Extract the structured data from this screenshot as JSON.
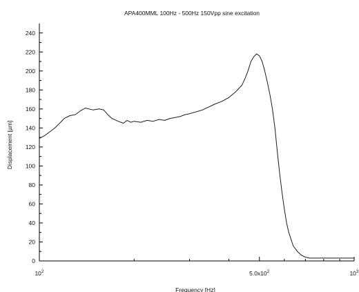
{
  "chart_data": {
    "type": "line",
    "title": "APA400MML 100Hz - 500Hz 150Vpp sine excitation",
    "xlabel": "Frequency [Hz]",
    "ylabel": "Displacement [µm]",
    "x_scale": "log",
    "xlim": [
      100,
      1000
    ],
    "ylim": [
      0,
      250
    ],
    "x_ticks": [
      {
        "value": 100,
        "base": "10",
        "sup": "2"
      },
      {
        "value": 500,
        "base": "5.0x10",
        "sup": "2"
      },
      {
        "value": 1000,
        "base": "10",
        "sup": "3"
      }
    ],
    "y_ticks": [
      0,
      10,
      20,
      30,
      40,
      50,
      60,
      70,
      80,
      90,
      100,
      110,
      120,
      130,
      140,
      150,
      160,
      170,
      180,
      190,
      200,
      210,
      220,
      230,
      240
    ],
    "grid": false,
    "series": [
      {
        "color": "#1a1a1a",
        "x": [
          100,
          104,
          108,
          112,
          116,
          120,
          125,
          130,
          135,
          140,
          148,
          155,
          160,
          165,
          170,
          178,
          185,
          190,
          195,
          200,
          210,
          220,
          230,
          240,
          250,
          260,
          270,
          280,
          290,
          300,
          315,
          330,
          345,
          360,
          380,
          400,
          420,
          440,
          450,
          460,
          470,
          480,
          490,
          500,
          510,
          520,
          530,
          540,
          550,
          560,
          570,
          580,
          590,
          600,
          610,
          620,
          640,
          660,
          680,
          700,
          720,
          740,
          760,
          800,
          850,
          900,
          950,
          1000
        ],
        "y": [
          129,
          132,
          136,
          140,
          145,
          150,
          153,
          154,
          158,
          161,
          159,
          160,
          159,
          154,
          150,
          147,
          145,
          148,
          146,
          147,
          146,
          148,
          147,
          149,
          148,
          150,
          151,
          152,
          154,
          155,
          157,
          159,
          162,
          165,
          168,
          172,
          178,
          185,
          192,
          200,
          210,
          215,
          218,
          216,
          210,
          200,
          188,
          175,
          160,
          140,
          115,
          92,
          72,
          55,
          40,
          30,
          16,
          10,
          6,
          4,
          3,
          3,
          3,
          3,
          3,
          3,
          3,
          3
        ]
      }
    ]
  }
}
